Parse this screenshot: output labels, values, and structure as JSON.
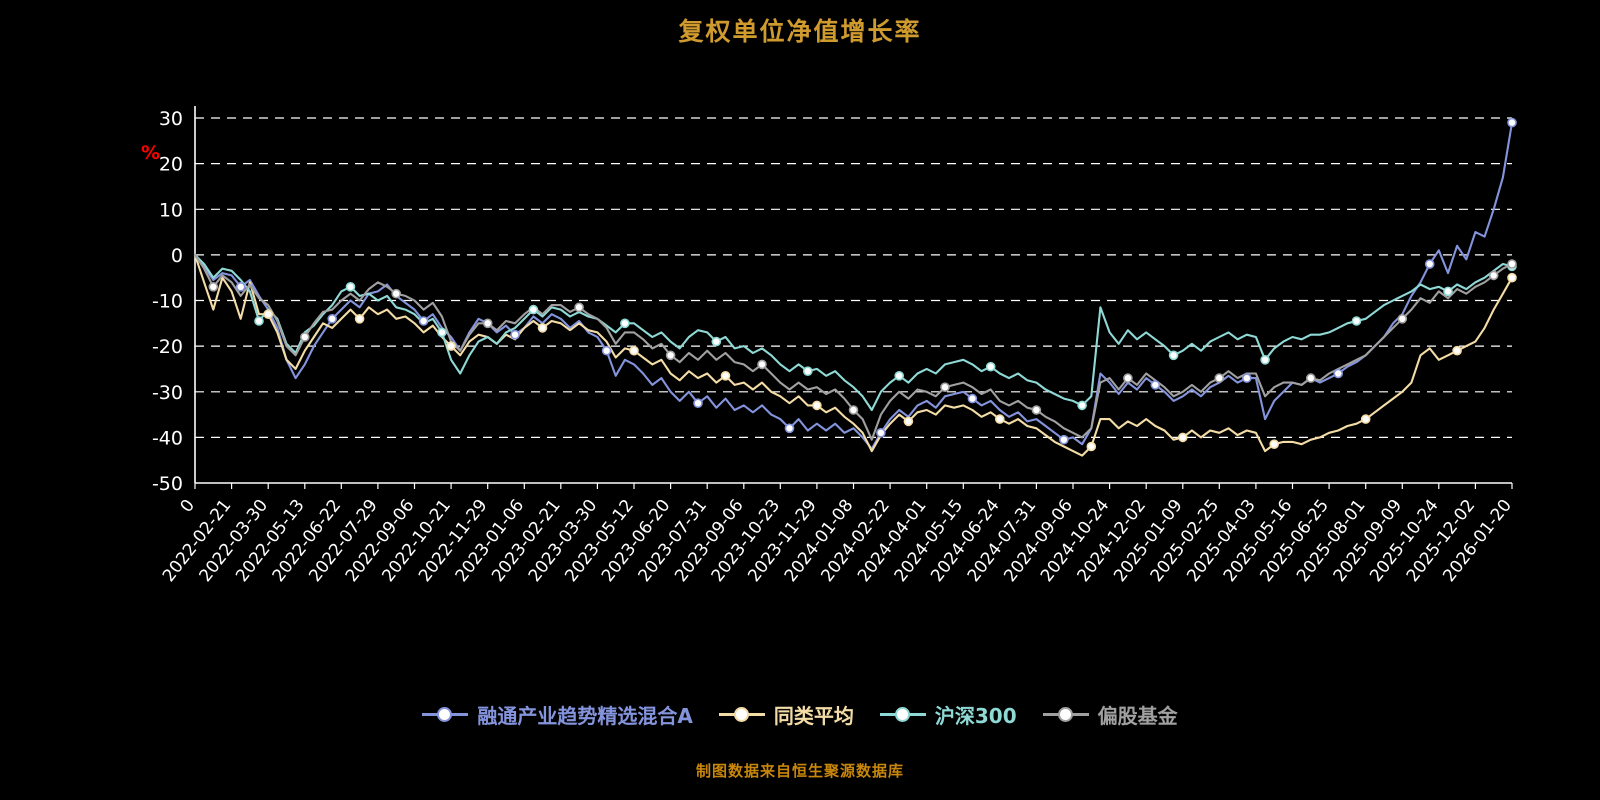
{
  "footer": "制图数据来自恒生聚源数据库",
  "colors": {
    "background": "#000000",
    "title": "#cf9a2e",
    "footer": "#c8860a",
    "unit": "#ff0000",
    "axis": "#ffffff",
    "fund": "#8494dc",
    "peer_avg": "#f3dca6",
    "csi300": "#8ed9d5",
    "equity_funds": "#a0a0a0"
  },
  "chart_data": {
    "type": "line",
    "title": "复权单位净值增长率",
    "xlabel": "",
    "ylabel": "%",
    "ylim": [
      -50,
      30
    ],
    "yticks": [
      30,
      20,
      10,
      0,
      -10,
      -20,
      -30,
      -40,
      -50
    ],
    "grid": "dashed-horizontal",
    "legend_position": "bottom",
    "xticklabels": [
      "0",
      "2022-02-21",
      "2022-03-30",
      "2022-05-13",
      "2022-06-22",
      "2022-07-29",
      "2022-09-06",
      "2022-10-21",
      "2022-11-29",
      "2023-01-06",
      "2023-02-21",
      "2023-03-30",
      "2023-05-12",
      "2023-06-20",
      "2023-07-31",
      "2023-09-06",
      "2023-10-23",
      "2023-11-29",
      "2024-01-08",
      "2024-02-22",
      "2024-04-01",
      "2024-05-15",
      "2024-06-24",
      "2024-07-31",
      "2024-09-06",
      "2024-10-24",
      "2024-12-02",
      "2025-01-09",
      "2025-02-25",
      "2025-04-03",
      "2025-05-16",
      "2025-06-25",
      "2025-08-01",
      "2025-09-09",
      "2025-10-24",
      "2025-12-02",
      "2026-01-20"
    ],
    "series": [
      {
        "name": "融通产业趋势精选混合A",
        "color": "#8494dc",
        "values": [
          0,
          -2.5,
          -5.5,
          -4,
          -4.5,
          -7,
          -5.5,
          -9,
          -12,
          -16,
          -23,
          -27,
          -24,
          -20,
          -17,
          -14,
          -12,
          -10,
          -11.5,
          -8.5,
          -8,
          -6.5,
          -9,
          -10.5,
          -12,
          -14.5,
          -13,
          -16,
          -18,
          -21,
          -17,
          -14,
          -15,
          -17,
          -15.5,
          -17.5,
          -16,
          -13.5,
          -15,
          -13,
          -14,
          -16,
          -14.5,
          -17,
          -18,
          -21,
          -26.5,
          -23,
          -24,
          -26,
          -28.5,
          -27,
          -30,
          -32,
          -30,
          -32.5,
          -31,
          -33.5,
          -31.5,
          -34,
          -33,
          -34.5,
          -33,
          -35,
          -36,
          -38,
          -36,
          -38.5,
          -37,
          -38.5,
          -37,
          -39,
          -38,
          -40,
          -42.5,
          -39,
          -36,
          -34,
          -35.5,
          -33,
          -32,
          -33.5,
          -31,
          -30.5,
          -30,
          -31.5,
          -33,
          -32,
          -34,
          -35.5,
          -34.5,
          -36.5,
          -36,
          -37.5,
          -39,
          -40.5,
          -40,
          -41.5,
          -38,
          -26,
          -28,
          -30.5,
          -28,
          -29.5,
          -27,
          -28.5,
          -30,
          -32,
          -31,
          -29.5,
          -31,
          -29,
          -28,
          -26.5,
          -28,
          -27,
          -27,
          -36,
          -32,
          -30,
          -28,
          -28.5,
          -27,
          -28,
          -27,
          -26,
          -24.5,
          -23.5,
          -22,
          -20,
          -18,
          -15,
          -13,
          -9,
          -6,
          -2,
          1,
          -4,
          2,
          -1,
          5,
          4,
          10,
          17,
          29
        ]
      },
      {
        "name": "同类平均",
        "color": "#f3dca6",
        "values": [
          0,
          -6,
          -12,
          -5,
          -8,
          -14,
          -6,
          -13,
          -13,
          -17,
          -23,
          -25,
          -21,
          -18,
          -15,
          -16,
          -14,
          -12,
          -14,
          -11.5,
          -13,
          -12,
          -14,
          -13.5,
          -15,
          -17,
          -15.5,
          -18,
          -20,
          -22,
          -19,
          -17.5,
          -18,
          -19.5,
          -17.5,
          -18.5,
          -16,
          -14.5,
          -16,
          -14.5,
          -15,
          -16.5,
          -15,
          -16.5,
          -17,
          -19,
          -22.5,
          -20.5,
          -21,
          -22.5,
          -24,
          -23,
          -26,
          -27.5,
          -25.5,
          -27,
          -26,
          -28,
          -26.5,
          -28.5,
          -28,
          -29.5,
          -28,
          -30,
          -31,
          -32.5,
          -31,
          -33,
          -33,
          -34.5,
          -33.5,
          -35.5,
          -37,
          -39,
          -43,
          -39.5,
          -37,
          -35,
          -36.5,
          -34.5,
          -34,
          -35,
          -33,
          -33.5,
          -33,
          -34,
          -35.5,
          -34.5,
          -36,
          -37,
          -36,
          -37.5,
          -38,
          -39.5,
          -41,
          -42,
          -43,
          -44,
          -42,
          -36,
          -36,
          -38,
          -36.5,
          -37.5,
          -36,
          -37.5,
          -38.5,
          -40.5,
          -40,
          -38.5,
          -40,
          -38.5,
          -39,
          -38,
          -39.5,
          -38.5,
          -39,
          -43,
          -41.5,
          -41,
          -41,
          -41.5,
          -40.5,
          -40,
          -39,
          -38.5,
          -37.5,
          -37,
          -36,
          -34.5,
          -33,
          -31.5,
          -30,
          -28,
          -22,
          -20.5,
          -23,
          -22,
          -21,
          -20,
          -19,
          -16,
          -12,
          -8.5,
          -5
        ]
      },
      {
        "name": "沪深300",
        "color": "#8ed9d5",
        "values": [
          0,
          -2,
          -5,
          -3,
          -3.5,
          -5.5,
          -8,
          -14.5,
          -12,
          -14,
          -19.5,
          -21.5,
          -17,
          -15.5,
          -13,
          -11,
          -8,
          -7,
          -9,
          -8.5,
          -10,
          -9,
          -11.5,
          -12,
          -13,
          -15,
          -14,
          -17,
          -23,
          -26,
          -22,
          -19,
          -18,
          -19.5,
          -17,
          -16,
          -14,
          -12,
          -13.5,
          -11.5,
          -12,
          -13.5,
          -12.5,
          -13.5,
          -14,
          -15.5,
          -17,
          -15,
          -15,
          -16.5,
          -18,
          -17,
          -19,
          -20.5,
          -18,
          -16.5,
          -17,
          -19,
          -18,
          -20.5,
          -20,
          -21.5,
          -20.5,
          -22,
          -24,
          -25.5,
          -24,
          -25.5,
          -25,
          -26.5,
          -25.5,
          -27.5,
          -29,
          -31,
          -34,
          -30,
          -28,
          -26.5,
          -28,
          -26,
          -25,
          -26,
          -24,
          -23.5,
          -23,
          -24,
          -25.5,
          -24.5,
          -26,
          -27,
          -26,
          -27.5,
          -28,
          -29.5,
          -30.5,
          -31.5,
          -32,
          -33,
          -31,
          -11.5,
          -17,
          -19.5,
          -16.5,
          -18.5,
          -17,
          -18.5,
          -20,
          -22,
          -21,
          -19.5,
          -21,
          -19,
          -18,
          -17,
          -18.5,
          -17.5,
          -18,
          -23,
          -20.5,
          -19,
          -18,
          -18.5,
          -17.5,
          -17.5,
          -17,
          -16,
          -15,
          -14.5,
          -14,
          -12.5,
          -11,
          -10,
          -9,
          -8,
          -6.5,
          -7.5,
          -7,
          -8,
          -6.5,
          -7.5,
          -6,
          -5,
          -3.5,
          -2,
          -2.5
        ]
      },
      {
        "name": "偏股基金",
        "color": "#a0a0a0",
        "values": [
          0,
          -3,
          -7,
          -4.5,
          -6,
          -9,
          -6.5,
          -9.5,
          -11,
          -14.5,
          -20,
          -22,
          -18,
          -15,
          -12.5,
          -12,
          -10,
          -8.5,
          -10,
          -7.5,
          -6,
          -7,
          -8.5,
          -9,
          -10,
          -12,
          -10.5,
          -13.5,
          -19,
          -21,
          -17.5,
          -15,
          -15,
          -16.5,
          -14.5,
          -15,
          -13,
          -11.5,
          -13,
          -11,
          -11,
          -12.5,
          -11.5,
          -13,
          -14,
          -16,
          -19.5,
          -17,
          -17,
          -18.5,
          -20.5,
          -19.5,
          -22,
          -23.5,
          -21.5,
          -23,
          -21,
          -23,
          -21.5,
          -23.5,
          -24,
          -25.5,
          -24,
          -26,
          -28,
          -29.5,
          -28,
          -29.5,
          -29,
          -30.5,
          -29.5,
          -31.5,
          -34,
          -36,
          -40.5,
          -35,
          -32,
          -30,
          -31.5,
          -29.5,
          -30,
          -31,
          -29,
          -28.5,
          -28,
          -29,
          -30.5,
          -29.5,
          -32,
          -33,
          -32,
          -33.5,
          -34,
          -35.5,
          -36.5,
          -38,
          -39,
          -40,
          -38,
          -28,
          -27,
          -29.5,
          -27,
          -28.5,
          -26,
          -27.5,
          -29,
          -31,
          -30,
          -28.5,
          -30,
          -28,
          -27,
          -25.5,
          -27,
          -26,
          -26,
          -31,
          -29,
          -28,
          -28,
          -28.5,
          -27,
          -27.5,
          -26,
          -25,
          -24,
          -23,
          -22,
          -20,
          -18,
          -16,
          -14,
          -12,
          -9.5,
          -10.5,
          -8,
          -9.5,
          -7.5,
          -8.5,
          -7,
          -6,
          -4.5,
          -3,
          -2
        ]
      }
    ]
  }
}
